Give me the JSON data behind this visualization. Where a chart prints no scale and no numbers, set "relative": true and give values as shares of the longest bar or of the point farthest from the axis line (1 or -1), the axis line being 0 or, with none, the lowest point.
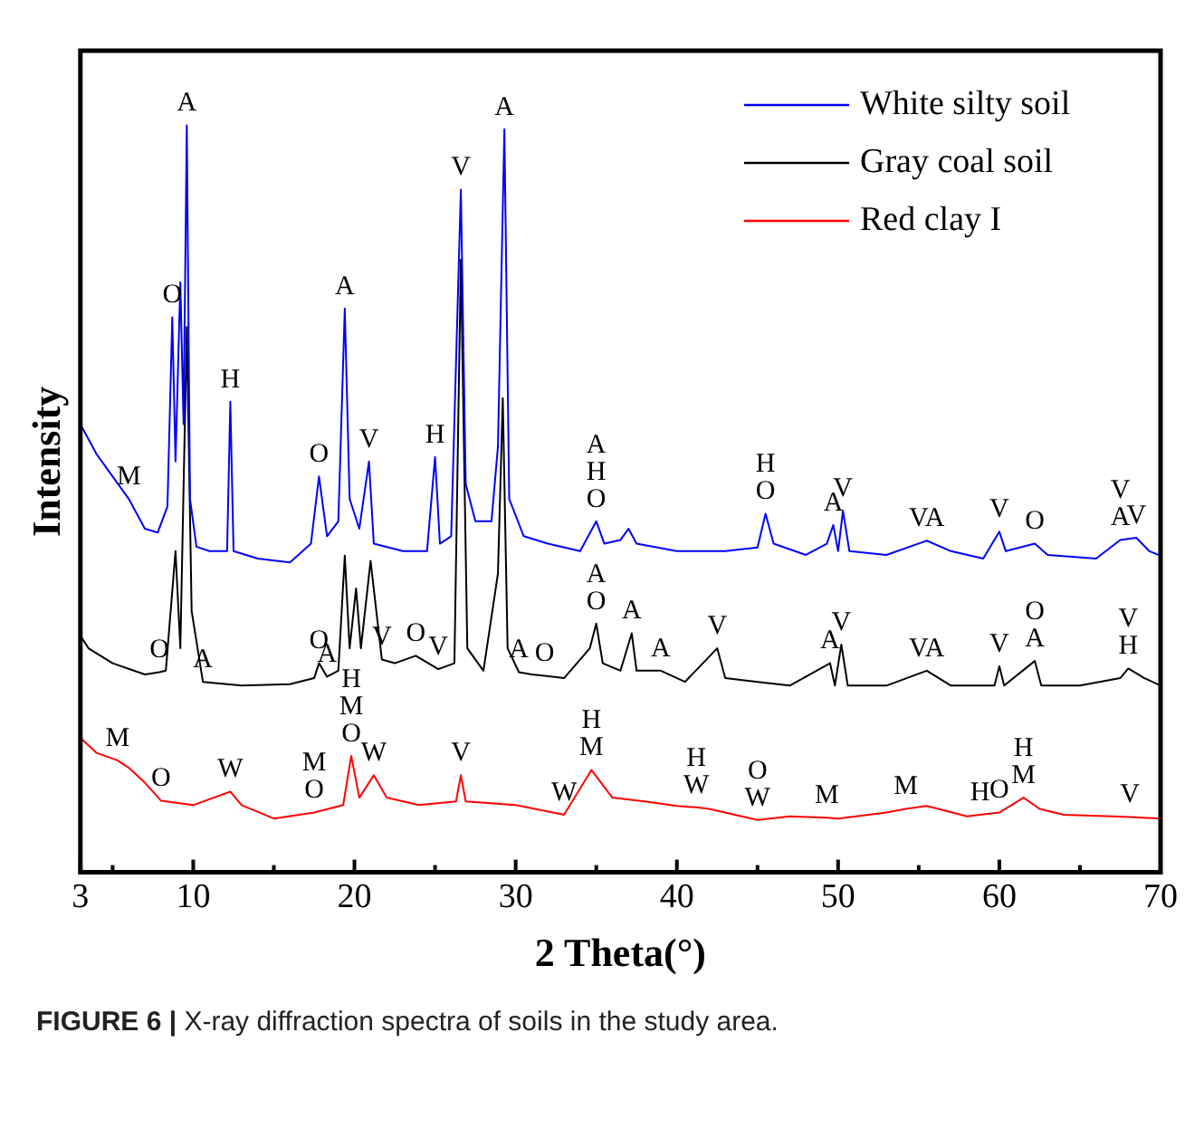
{
  "chart_data": {
    "type": "line",
    "xlabel": "2 Theta(°)",
    "ylabel": "Intensity",
    "relative": true,
    "legend": "top right",
    "grid": false,
    "xlim": [
      3,
      70
    ],
    "xticks": [
      3,
      {
        "value": 5,
        "label": null
      },
      10,
      {
        "value": 15,
        "label": null
      },
      20,
      {
        "value": 25,
        "label": null
      },
      30,
      {
        "value": 35,
        "label": null
      },
      40,
      {
        "value": 45,
        "label": null
      },
      50,
      {
        "value": 55,
        "label": null
      },
      60,
      {
        "value": 65,
        "label": null
      },
      70
    ],
    "series": [
      {
        "name": "White silty soil",
        "color": "#0000ff",
        "x": [
          3,
          4,
          5,
          6,
          7,
          7.8,
          8.4,
          8.7,
          8.9,
          9.2,
          9.4,
          9.6,
          9.8,
          10.2,
          11,
          12.1,
          12.3,
          12.5,
          14,
          16,
          17.3,
          17.8,
          18.3,
          19,
          19.4,
          19.7,
          20.3,
          20.9,
          21.2,
          23,
          24.5,
          25,
          25.3,
          26,
          26.6,
          26.9,
          27.5,
          28.5,
          28.9,
          29.3,
          29.6,
          30.5,
          32,
          34,
          35,
          35.5,
          36.5,
          37,
          37.5,
          40,
          43,
          45,
          45.5,
          46,
          48,
          49.3,
          49.7,
          50,
          50.3,
          50.7,
          53,
          55.5,
          57,
          59,
          60,
          60.4,
          62.2,
          63,
          66,
          67.5,
          68.5,
          69.3,
          70
        ],
        "values": [
          0.6,
          0.56,
          0.53,
          0.5,
          0.46,
          0.455,
          0.49,
          0.743,
          0.55,
          0.79,
          0.6,
          1.0,
          0.5,
          0.436,
          0.43,
          0.43,
          0.63,
          0.43,
          0.42,
          0.415,
          0.44,
          0.53,
          0.45,
          0.47,
          0.755,
          0.5,
          0.46,
          0.55,
          0.44,
          0.43,
          0.43,
          0.556,
          0.44,
          0.45,
          0.914,
          0.52,
          0.47,
          0.47,
          0.57,
          0.995,
          0.5,
          0.45,
          0.44,
          0.43,
          0.47,
          0.44,
          0.445,
          0.46,
          0.44,
          0.43,
          0.43,
          0.435,
          0.48,
          0.44,
          0.425,
          0.44,
          0.465,
          0.43,
          0.484,
          0.43,
          0.425,
          0.444,
          0.43,
          0.42,
          0.456,
          0.43,
          0.44,
          0.425,
          0.42,
          0.445,
          0.448,
          0.43,
          0.424
        ]
      },
      {
        "name": "Gray coal soil",
        "color": "#000000",
        "x": [
          3,
          3.5,
          5,
          7,
          7.9,
          8.3,
          8.6,
          8.9,
          9.2,
          9.6,
          9.9,
          10.6,
          13,
          16,
          17.5,
          17.8,
          18.3,
          19,
          19.4,
          19.7,
          20.1,
          20.4,
          21,
          21.7,
          22.5,
          23.8,
          25.2,
          26.2,
          26.6,
          27,
          28,
          28.9,
          29.2,
          29.5,
          30.2,
          31,
          31.8,
          33,
          34.6,
          35,
          35.4,
          36.5,
          37.2,
          37.5,
          39,
          40.5,
          42.5,
          43,
          45,
          47,
          49.5,
          49.8,
          50.2,
          50.6,
          53,
          55.5,
          57,
          59.7,
          60,
          60.3,
          62.2,
          62.6,
          65,
          67.5,
          68,
          69,
          70
        ],
        "values": [
          0.317,
          0.3,
          0.28,
          0.265,
          0.268,
          0.27,
          0.35,
          0.43,
          0.3,
          0.73,
          0.35,
          0.255,
          0.25,
          0.252,
          0.26,
          0.28,
          0.262,
          0.27,
          0.424,
          0.3,
          0.38,
          0.3,
          0.417,
          0.285,
          0.28,
          0.29,
          0.272,
          0.28,
          0.82,
          0.3,
          0.27,
          0.4,
          0.635,
          0.3,
          0.268,
          0.265,
          0.263,
          0.26,
          0.3,
          0.333,
          0.28,
          0.27,
          0.32,
          0.27,
          0.27,
          0.255,
          0.3,
          0.26,
          0.255,
          0.25,
          0.28,
          0.25,
          0.305,
          0.25,
          0.25,
          0.27,
          0.25,
          0.25,
          0.276,
          0.25,
          0.283,
          0.25,
          0.25,
          0.26,
          0.273,
          0.26,
          0.25
        ]
      },
      {
        "name": "Red clay I",
        "color": "#ff0000",
        "x": [
          3,
          4,
          5.3,
          6,
          7,
          8,
          10,
          12.3,
          13,
          15,
          17.5,
          19.3,
          19.8,
          20.3,
          21.2,
          22,
          24,
          26.3,
          26.6,
          26.9,
          30,
          33,
          34.7,
          36,
          38,
          40,
          41.2,
          42,
          45,
          47,
          49.3,
          50,
          53,
          54.2,
          55.5,
          58,
          58.8,
          60,
          61.5,
          62.5,
          64,
          67,
          68.1,
          70
        ],
        "values": [
          0.18,
          0.16,
          0.15,
          0.14,
          0.12,
          0.096,
          0.09,
          0.108,
          0.09,
          0.072,
          0.08,
          0.09,
          0.156,
          0.1,
          0.13,
          0.1,
          0.09,
          0.095,
          0.13,
          0.095,
          0.09,
          0.077,
          0.137,
          0.1,
          0.095,
          0.089,
          0.087,
          0.085,
          0.07,
          0.075,
          0.073,
          0.072,
          0.08,
          0.085,
          0.089,
          0.075,
          0.077,
          0.08,
          0.1,
          0.085,
          0.077,
          0.075,
          0.074,
          0.072
        ]
      }
    ],
    "annotations": [
      {
        "text": "M",
        "x": 6,
        "y": 0.5
      },
      {
        "text": "O",
        "x": 8.7,
        "y": 0.743
      },
      {
        "text": "A",
        "x": 9.6,
        "y": 1.0
      },
      {
        "text": "H",
        "x": 12.3,
        "y": 0.63
      },
      {
        "text": "O",
        "x": 17.8,
        "y": 0.53
      },
      {
        "text": "A",
        "x": 19.4,
        "y": 0.755
      },
      {
        "text": "V",
        "x": 20.9,
        "y": 0.55
      },
      {
        "text": "H",
        "x": 25,
        "y": 0.556
      },
      {
        "text": "V",
        "x": 26.6,
        "y": 0.914
      },
      {
        "text": "A",
        "x": 29.3,
        "y": 0.995
      },
      {
        "text": "A",
        "x": 35,
        "y": 0.47
      },
      {
        "text": "H",
        "x": 35,
        "y": 0.47
      },
      {
        "text": "O",
        "x": 35,
        "y": 0.47
      },
      {
        "text": "H",
        "x": 45.5,
        "y": 0.48
      },
      {
        "text": "O",
        "x": 45.5,
        "y": 0.48
      },
      {
        "text": "A",
        "x": 49.7,
        "y": 0.465
      },
      {
        "text": "V",
        "x": 50.3,
        "y": 0.484
      },
      {
        "text": "VA",
        "x": 55.5,
        "y": 0.444
      },
      {
        "text": "V",
        "x": 60,
        "y": 0.456
      },
      {
        "text": "O",
        "x": 62.2,
        "y": 0.44
      },
      {
        "text": "V",
        "x": 67.5,
        "y": 0.445
      },
      {
        "text": "A",
        "x": 67.5,
        "y": 0.445
      },
      {
        "text": "V",
        "x": 68.5,
        "y": 0.448
      },
      {
        "text": "O",
        "x": 7.9,
        "y": 0.268
      },
      {
        "text": "A",
        "x": 10.6,
        "y": 0.255
      },
      {
        "text": "O",
        "x": 17.8,
        "y": 0.28
      },
      {
        "text": "A",
        "x": 18.3,
        "y": 0.262
      },
      {
        "text": "V",
        "x": 21.7,
        "y": 0.285
      },
      {
        "text": "O",
        "x": 23.8,
        "y": 0.29
      },
      {
        "text": "V",
        "x": 25.2,
        "y": 0.272
      },
      {
        "text": "A",
        "x": 30.2,
        "y": 0.268
      },
      {
        "text": "O",
        "x": 31.8,
        "y": 0.263
      },
      {
        "text": "A",
        "x": 35,
        "y": 0.333
      },
      {
        "text": "O",
        "x": 35,
        "y": 0.333
      },
      {
        "text": "A",
        "x": 37.2,
        "y": 0.32
      },
      {
        "text": "A",
        "x": 39,
        "y": 0.27
      },
      {
        "text": "V",
        "x": 42.5,
        "y": 0.3
      },
      {
        "text": "A",
        "x": 49.5,
        "y": 0.28
      },
      {
        "text": "V",
        "x": 50.2,
        "y": 0.305
      },
      {
        "text": "VA",
        "x": 55.5,
        "y": 0.27
      },
      {
        "text": "V",
        "x": 60,
        "y": 0.276
      },
      {
        "text": "O",
        "x": 62.2,
        "y": 0.283
      },
      {
        "text": "A",
        "x": 62.2,
        "y": 0.283
      },
      {
        "text": "V",
        "x": 68,
        "y": 0.273
      },
      {
        "text": "H",
        "x": 68,
        "y": 0.273
      },
      {
        "text": "M",
        "x": 5.3,
        "y": 0.15
      },
      {
        "text": "O",
        "x": 8,
        "y": 0.096
      },
      {
        "text": "W",
        "x": 12.3,
        "y": 0.108
      },
      {
        "text": "M",
        "x": 17.5,
        "y": 0.08
      },
      {
        "text": "O",
        "x": 17.5,
        "y": 0.08
      },
      {
        "text": "H",
        "x": 19.8,
        "y": 0.156
      },
      {
        "text": "M",
        "x": 19.8,
        "y": 0.156
      },
      {
        "text": "O",
        "x": 19.8,
        "y": 0.156
      },
      {
        "text": "W",
        "x": 21.2,
        "y": 0.13
      },
      {
        "text": "V",
        "x": 26.6,
        "y": 0.13
      },
      {
        "text": "W",
        "x": 33,
        "y": 0.077
      },
      {
        "text": "H",
        "x": 34.7,
        "y": 0.137
      },
      {
        "text": "M",
        "x": 34.7,
        "y": 0.137
      },
      {
        "text": "H",
        "x": 41.2,
        "y": 0.087
      },
      {
        "text": "W",
        "x": 41.2,
        "y": 0.087
      },
      {
        "text": "O",
        "x": 45,
        "y": 0.07
      },
      {
        "text": "W",
        "x": 45,
        "y": 0.07
      },
      {
        "text": "M",
        "x": 49.3,
        "y": 0.073
      },
      {
        "text": "M",
        "x": 54.2,
        "y": 0.085
      },
      {
        "text": "H",
        "x": 58.8,
        "y": 0.077
      },
      {
        "text": "O",
        "x": 60,
        "y": 0.08
      },
      {
        "text": "H",
        "x": 61.5,
        "y": 0.1
      },
      {
        "text": "M",
        "x": 61.5,
        "y": 0.1
      },
      {
        "text": "V",
        "x": 68.1,
        "y": 0.074
      },
      "FIGURE 6 | X-ray diffraction spectra of soils in the study area."
    ]
  }
}
